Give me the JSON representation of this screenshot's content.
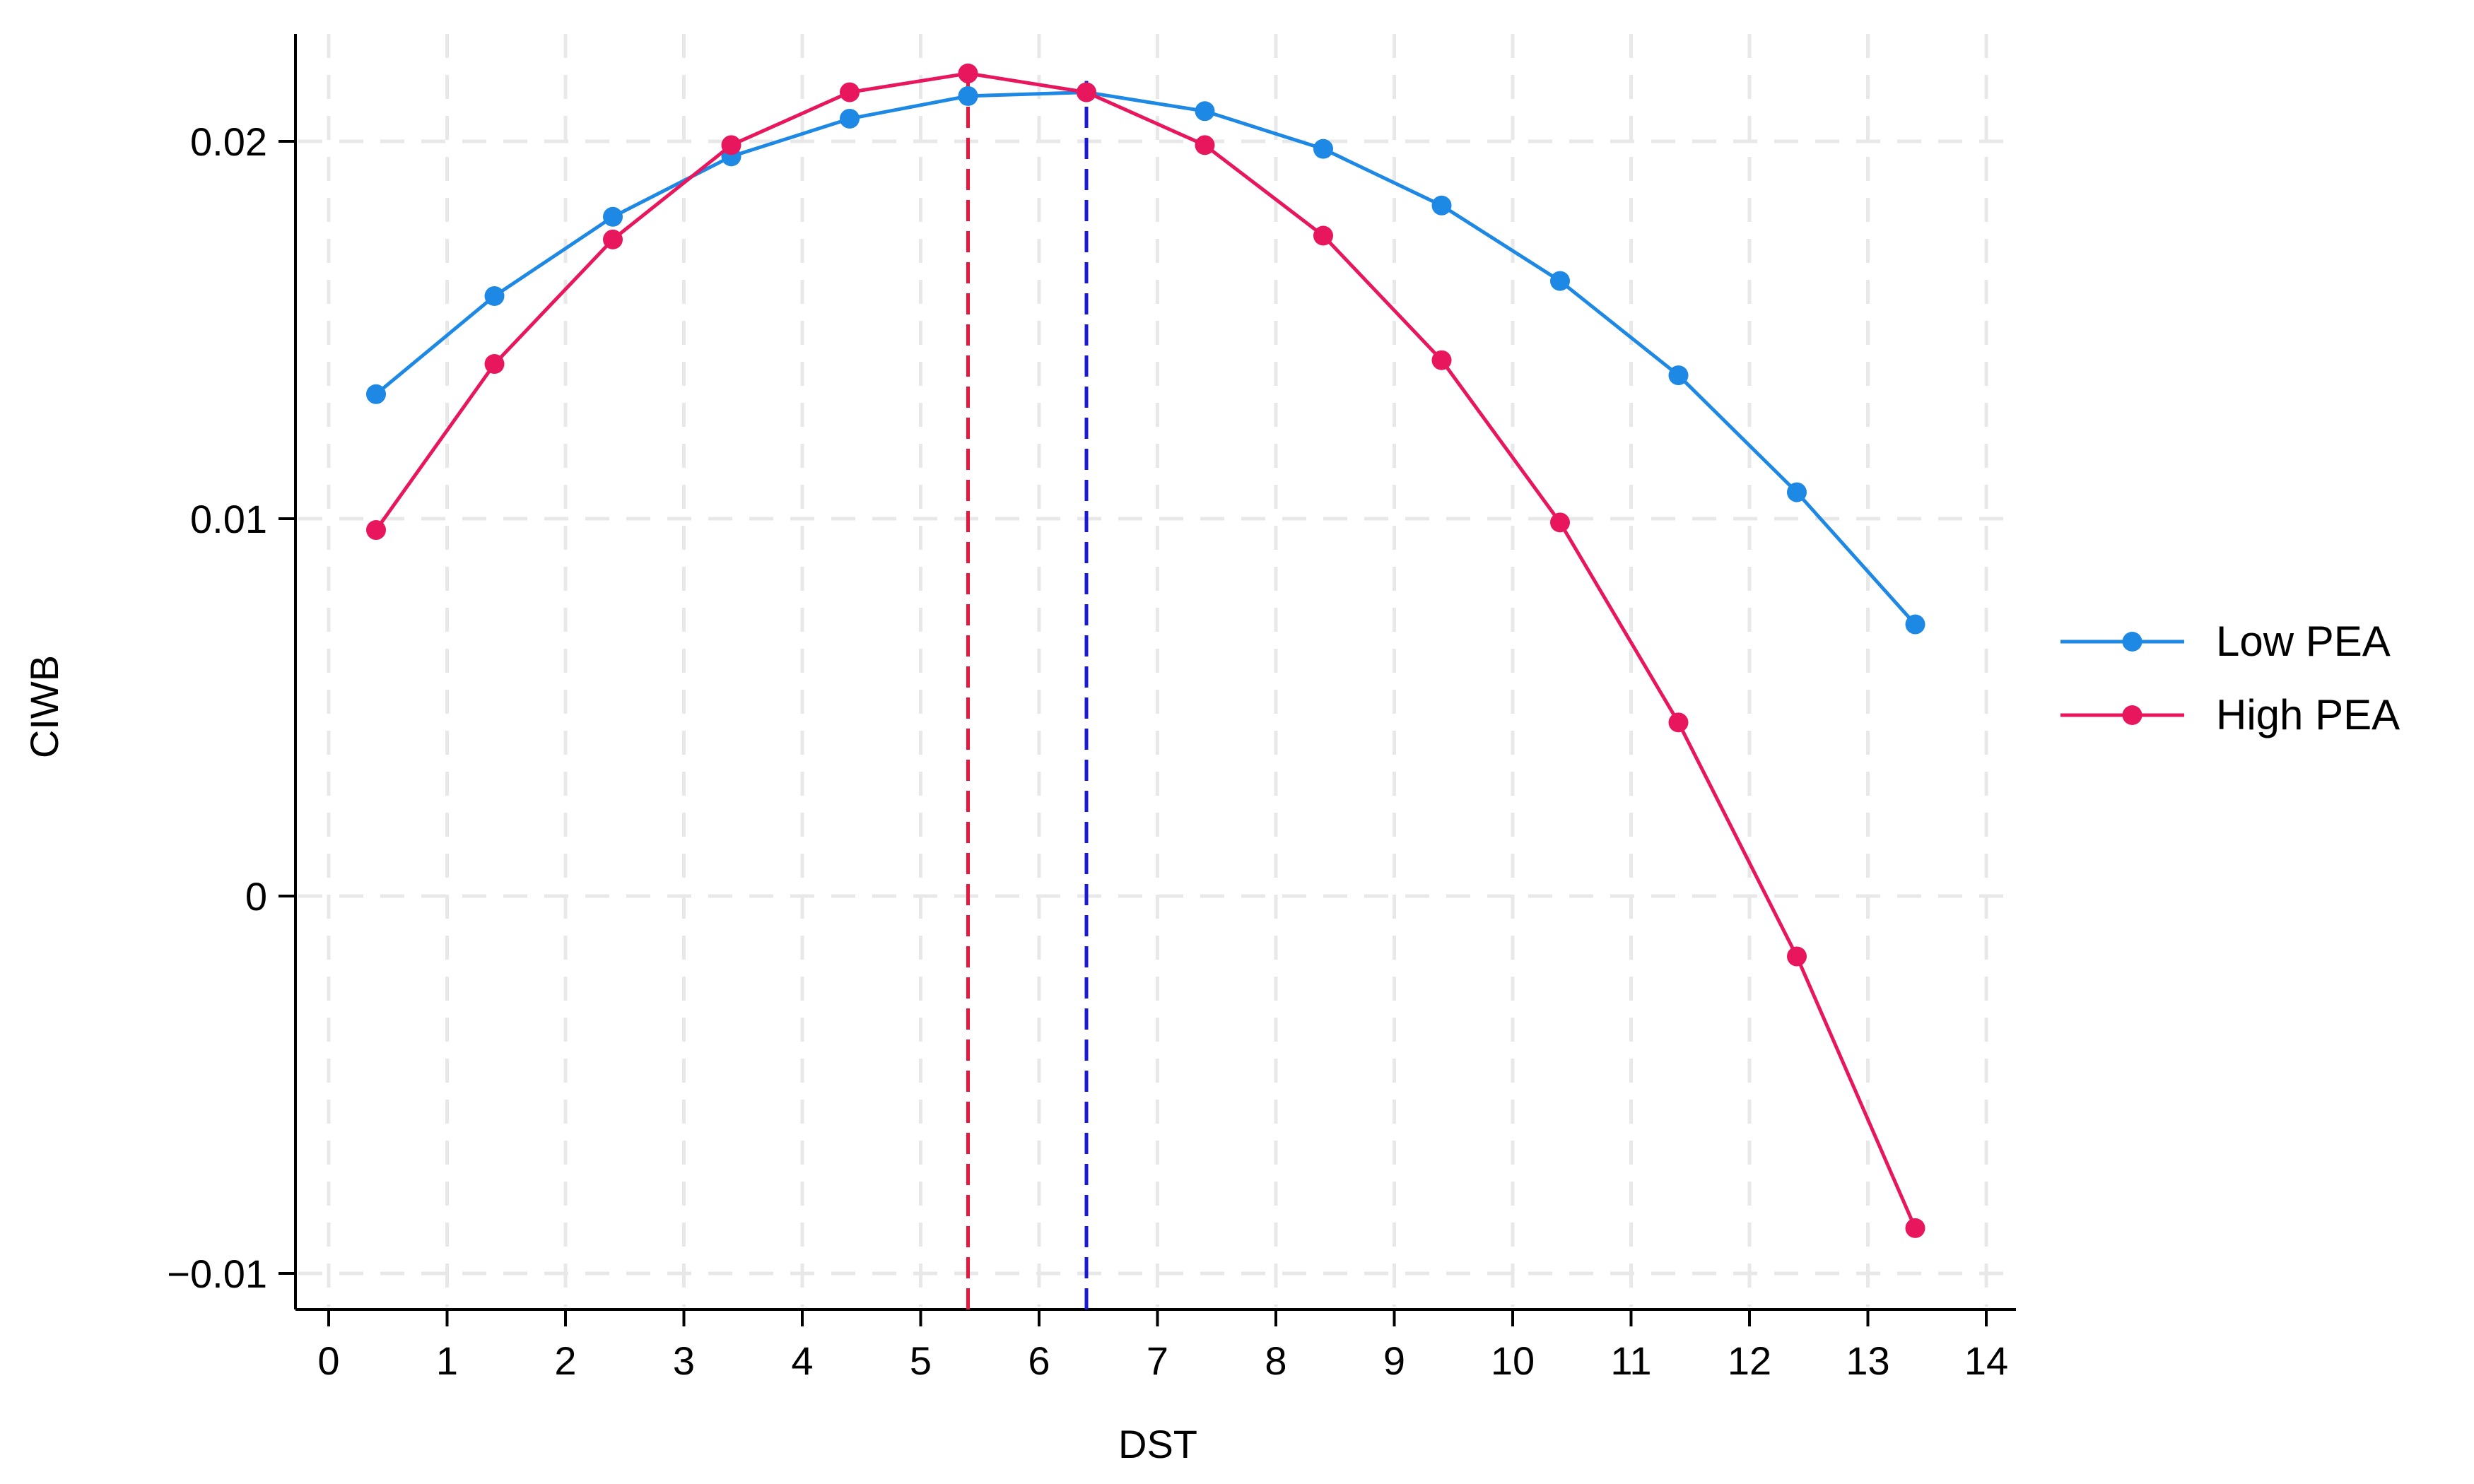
{
  "chart_data": {
    "type": "line",
    "title": "",
    "xlabel": "DST",
    "ylabel": "CIWB",
    "xlim": [
      0,
      14
    ],
    "ylim": [
      -0.01,
      0.02
    ],
    "x_ticks": [
      0,
      1,
      2,
      3,
      4,
      5,
      6,
      7,
      8,
      9,
      10,
      11,
      12,
      13,
      14
    ],
    "x_tick_labels": [
      "0",
      "1",
      "2",
      "3",
      "4",
      "5",
      "6",
      "7",
      "8",
      "9",
      "10",
      "11",
      "12",
      "13",
      "14"
    ],
    "y_ticks": [
      -0.01,
      0,
      0.01,
      0.02
    ],
    "y_tick_labels": [
      "−0.01",
      "0",
      "0.01",
      "0.02"
    ],
    "grid": true,
    "legend_position": "right",
    "x": [
      0.4,
      1.4,
      2.4,
      3.4,
      4.4,
      5.4,
      6.4,
      7.4,
      8.4,
      9.4,
      10.4,
      11.4,
      12.4,
      13.4
    ],
    "series": [
      {
        "name": "Low PEA",
        "color": "#1e88e5",
        "values": [
          0.0133,
          0.0159,
          0.018,
          0.0196,
          0.0206,
          0.0212,
          0.0213,
          0.0208,
          0.0198,
          0.0183,
          0.0163,
          0.0138,
          0.0107,
          0.0072
        ]
      },
      {
        "name": "High PEA",
        "color": "#e8175d",
        "values": [
          0.0097,
          0.0141,
          0.0174,
          0.0199,
          0.0213,
          0.0218,
          0.0213,
          0.0199,
          0.0175,
          0.0142,
          0.0099,
          0.0046,
          -0.0016,
          -0.0088
        ]
      }
    ],
    "reference_lines": [
      {
        "x": 5.4,
        "color": "#e8173b",
        "style": "dashed"
      },
      {
        "x": 6.4,
        "color": "#1a1ad6",
        "style": "dashed"
      }
    ]
  }
}
